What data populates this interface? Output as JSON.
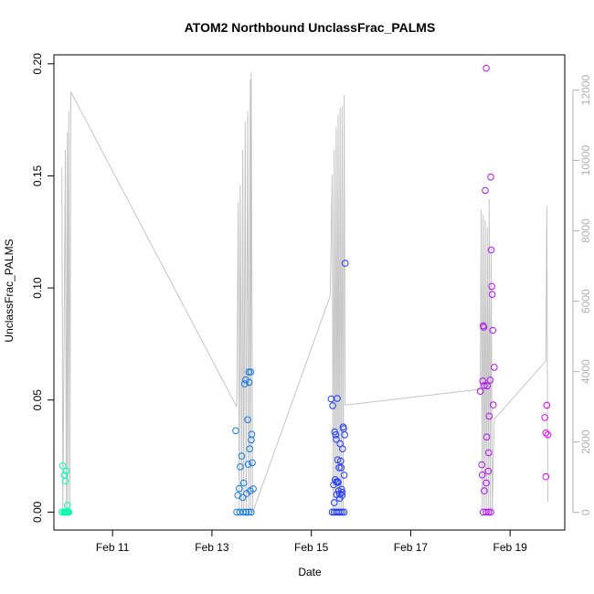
{
  "chart_data": {
    "type": "scatter",
    "title": "ATOM2 Northbound UnclassFrac_PALMS",
    "xlabel": "Date",
    "ylabel": "UnclassFrac_PALMS",
    "x_unit": "day of February 2017",
    "xlim": [
      9.82,
      20.1
    ],
    "ylim": [
      -0.008,
      0.204
    ],
    "y2lim": [
      -500,
      13000
    ],
    "x_ticks": [
      {
        "x": 11,
        "label": "Feb 11"
      },
      {
        "x": 13,
        "label": "Feb 13"
      },
      {
        "x": 15,
        "label": "Feb 15"
      },
      {
        "x": 17,
        "label": "Feb 17"
      },
      {
        "x": 19,
        "label": "Feb 19"
      }
    ],
    "y_ticks": [
      {
        "y": 0.0,
        "label": "0.00"
      },
      {
        "y": 0.05,
        "label": "0.05"
      },
      {
        "y": 0.1,
        "label": "0.10"
      },
      {
        "y": 0.15,
        "label": "0.15"
      },
      {
        "y": 0.2,
        "label": "0.20"
      }
    ],
    "y2_ticks": [
      {
        "y": 0,
        "label": "0"
      },
      {
        "y": 2000,
        "label": "2000"
      },
      {
        "y": 4000,
        "label": "4000"
      },
      {
        "y": 6000,
        "label": "6000"
      },
      {
        "y": 8000,
        "label": "8000"
      },
      {
        "y": 10000,
        "label": "10000"
      },
      {
        "y": 12000,
        "label": "12000"
      }
    ],
    "colors": {
      "altitude_line": "#c4c4c4",
      "scatter_start": "#00ffaa",
      "scatter_mid": "#1a3aff",
      "scatter_end": "#ee00ee",
      "axis": "#000000",
      "right_axis": "#b0b0b0"
    },
    "points": [
      [
        10.0,
        0.0206
      ],
      [
        10.03,
        0.0165
      ],
      [
        10.05,
        0.0138
      ],
      [
        10.07,
        0.0183
      ],
      [
        10.09,
        0.003
      ],
      [
        9.98,
        0.0
      ],
      [
        10.02,
        0.0
      ],
      [
        10.04,
        0.0
      ],
      [
        10.06,
        0.0
      ],
      [
        10.08,
        0.0
      ],
      [
        10.1,
        0.0
      ],
      [
        10.12,
        0.0
      ],
      [
        13.48,
        0.0363
      ],
      [
        13.52,
        0.0075
      ],
      [
        13.55,
        0.0105
      ],
      [
        13.57,
        0.0202
      ],
      [
        13.6,
        0.025
      ],
      [
        13.62,
        0.0065
      ],
      [
        13.64,
        0.013
      ],
      [
        13.66,
        0.0572
      ],
      [
        13.68,
        0.059
      ],
      [
        13.7,
        0.0083
      ],
      [
        13.72,
        0.0412
      ],
      [
        13.73,
        0.0213
      ],
      [
        13.74,
        0.0625
      ],
      [
        13.75,
        0.0579
      ],
      [
        13.76,
        0.0282
      ],
      [
        13.77,
        0.0095
      ],
      [
        13.78,
        0.0625
      ],
      [
        13.79,
        0.0322
      ],
      [
        13.8,
        0.0347
      ],
      [
        13.81,
        0.022
      ],
      [
        13.83,
        0.0104
      ],
      [
        13.5,
        0.0
      ],
      [
        13.56,
        0.0
      ],
      [
        13.63,
        0.0
      ],
      [
        13.69,
        0.0
      ],
      [
        13.74,
        0.0
      ],
      [
        13.79,
        0.0
      ],
      [
        15.4,
        0.0505
      ],
      [
        15.43,
        0.0475
      ],
      [
        15.45,
        0.0122
      ],
      [
        15.47,
        0.0358
      ],
      [
        15.49,
        0.0345
      ],
      [
        15.5,
        0.0325
      ],
      [
        15.51,
        0.0078
      ],
      [
        15.52,
        0.0507
      ],
      [
        15.53,
        0.0233
      ],
      [
        15.54,
        0.0133
      ],
      [
        15.55,
        0.0095
      ],
      [
        15.56,
        0.0198
      ],
      [
        15.57,
        0.0081
      ],
      [
        15.58,
        0.0305
      ],
      [
        15.59,
        0.0228
      ],
      [
        15.6,
        0.0198
      ],
      [
        15.61,
        0.0102
      ],
      [
        15.62,
        0.0075
      ],
      [
        15.63,
        0.0282
      ],
      [
        15.64,
        0.038
      ],
      [
        15.65,
        0.0372
      ],
      [
        15.66,
        0.0165
      ],
      [
        15.67,
        0.0345
      ],
      [
        15.68,
        0.111
      ],
      [
        15.46,
        0.0042
      ],
      [
        15.48,
        0.0145
      ],
      [
        15.5,
        0.0135
      ],
      [
        15.53,
        0.0136
      ],
      [
        15.57,
        0.0062
      ],
      [
        15.62,
        0.0088
      ],
      [
        15.42,
        0.0
      ],
      [
        15.46,
        0.0
      ],
      [
        15.5,
        0.0
      ],
      [
        15.54,
        0.0
      ],
      [
        15.58,
        0.0
      ],
      [
        15.62,
        0.0
      ],
      [
        15.66,
        0.0
      ],
      [
        18.4,
        0.0539
      ],
      [
        18.43,
        0.0211
      ],
      [
        18.45,
        0.0585
      ],
      [
        18.46,
        0.0831
      ],
      [
        18.47,
        0.0825
      ],
      [
        18.48,
        0.0565
      ],
      [
        18.5,
        0.1435
      ],
      [
        18.52,
        0.198
      ],
      [
        18.53,
        0.0335
      ],
      [
        18.54,
        0.0563
      ],
      [
        18.56,
        0.0183
      ],
      [
        18.58,
        0.0428
      ],
      [
        18.6,
        0.0589
      ],
      [
        18.61,
        0.1495
      ],
      [
        18.62,
        0.1169
      ],
      [
        18.63,
        0.1007
      ],
      [
        18.64,
        0.0971
      ],
      [
        18.65,
        0.0811
      ],
      [
        18.66,
        0.0478
      ],
      [
        18.68,
        0.0646
      ],
      [
        18.44,
        0.0166
      ],
      [
        18.48,
        0.0095
      ],
      [
        18.52,
        0.013
      ],
      [
        18.57,
        0.0265
      ],
      [
        18.46,
        0.0
      ],
      [
        18.52,
        0.0
      ],
      [
        18.57,
        0.0
      ],
      [
        18.61,
        0.0
      ],
      [
        19.7,
        0.0422
      ],
      [
        19.72,
        0.0353
      ],
      [
        19.74,
        0.0477
      ],
      [
        19.76,
        0.0345
      ],
      [
        19.72,
        0.0158
      ]
    ],
    "altitude": [
      [
        9.98,
        9800
      ],
      [
        10.0,
        0
      ],
      [
        10.05,
        10300
      ],
      [
        10.07,
        0
      ],
      [
        10.09,
        10800
      ],
      [
        10.1,
        0
      ],
      [
        10.12,
        11400
      ],
      [
        10.14,
        0
      ],
      [
        10.16,
        11950
      ],
      [
        13.5,
        3000
      ],
      [
        13.53,
        8800
      ],
      [
        13.55,
        0
      ],
      [
        13.57,
        9300
      ],
      [
        13.6,
        0
      ],
      [
        13.62,
        10300
      ],
      [
        13.64,
        0
      ],
      [
        13.67,
        11100
      ],
      [
        13.69,
        0
      ],
      [
        13.72,
        11400
      ],
      [
        13.74,
        0
      ],
      [
        13.77,
        12300
      ],
      [
        13.78,
        0
      ],
      [
        13.79,
        12500
      ],
      [
        13.82,
        0
      ],
      [
        15.38,
        6150
      ],
      [
        15.42,
        9600
      ],
      [
        15.44,
        0
      ],
      [
        15.46,
        10300
      ],
      [
        15.48,
        0
      ],
      [
        15.5,
        10950
      ],
      [
        15.52,
        0
      ],
      [
        15.54,
        11300
      ],
      [
        15.56,
        0
      ],
      [
        15.58,
        11500
      ],
      [
        15.6,
        0
      ],
      [
        15.62,
        11550
      ],
      [
        15.64,
        0
      ],
      [
        15.66,
        11850
      ],
      [
        15.68,
        3050
      ],
      [
        18.4,
        3500
      ],
      [
        18.42,
        8600
      ],
      [
        18.44,
        0
      ],
      [
        18.46,
        8450
      ],
      [
        18.48,
        0
      ],
      [
        18.5,
        8300
      ],
      [
        18.52,
        0
      ],
      [
        18.54,
        8100
      ],
      [
        18.56,
        0
      ],
      [
        18.58,
        8900
      ],
      [
        18.6,
        0
      ],
      [
        18.62,
        7500
      ],
      [
        18.64,
        0
      ],
      [
        18.68,
        2650
      ],
      [
        19.72,
        4300
      ],
      [
        19.74,
        8700
      ],
      [
        19.76,
        300
      ]
    ]
  }
}
